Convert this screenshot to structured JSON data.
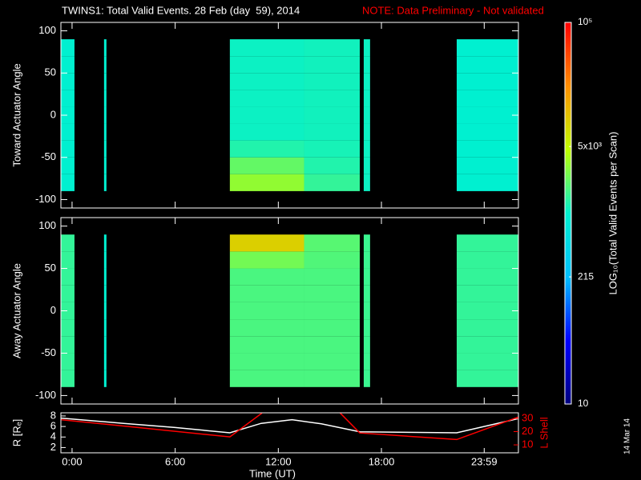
{
  "chart_data": [
    {
      "type": "heatmap",
      "title": "TWINS1: Total Valid Events. 28 Feb (day  59), 2014",
      "note": "NOTE: Data Preliminary - Not validated",
      "ylabel": "Toward Actuator Angle",
      "xlim": [
        -0.65,
        25.97
      ],
      "ylim": [
        -110,
        110
      ],
      "yticks": [
        -100,
        -50,
        0,
        50,
        100
      ],
      "angle_bins": [
        -90,
        -70,
        -50,
        -30,
        -10,
        10,
        30,
        50,
        70,
        90
      ],
      "segments": [
        {
          "start": -0.65,
          "end": 0.14,
          "values": [
            1000,
            1000,
            1000,
            1000,
            1000,
            1000,
            1000,
            1000,
            1000
          ]
        },
        {
          "start": 1.86,
          "end": 2.0,
          "values": [
            1000,
            1000,
            1000,
            1000,
            1000,
            1000,
            1000,
            1000,
            1000
          ]
        },
        {
          "start": 9.18,
          "end": 13.5,
          "values": [
            3200,
            2200,
            1300,
            1100,
            1100,
            1100,
            1100,
            1100,
            1100
          ]
        },
        {
          "start": 13.5,
          "end": 16.74,
          "values": [
            1500,
            1300,
            1200,
            1150,
            1150,
            1150,
            1150,
            1150,
            1150
          ]
        },
        {
          "start": 16.97,
          "end": 17.34,
          "values": [
            1100,
            1100,
            1100,
            1100,
            1100,
            1100,
            1100,
            1100,
            1100
          ]
        },
        {
          "start": 22.38,
          "end": 25.97,
          "values": [
            1000,
            1000,
            1000,
            1000,
            1000,
            1000,
            1000,
            1000,
            1000
          ]
        }
      ],
      "colorbar": {
        "label": "LOG₁₀(Total Valid Events per Scan)",
        "log": true,
        "lim": [
          10,
          100000
        ],
        "ticks": [
          10,
          215,
          {
            "value": 5000,
            "label": "5x10³"
          },
          {
            "value": 100000,
            "label": "10⁵"
          }
        ],
        "colors": [
          "#00007f",
          "#0000ff",
          "#00c0ff",
          "#00f0d0",
          "#c0ff00",
          "#ff9000",
          "#ff0000"
        ]
      }
    },
    {
      "type": "heatmap",
      "ylabel": "Away Actuator Angle",
      "xlim": [
        -0.65,
        25.97
      ],
      "ylim": [
        -110,
        110
      ],
      "yticks": [
        -100,
        -50,
        0,
        50,
        100
      ],
      "angle_bins": [
        -90,
        -70,
        -50,
        -30,
        -10,
        10,
        30,
        50,
        70,
        90
      ],
      "segments": [
        {
          "start": -0.65,
          "end": 0.14,
          "values": [
            1500,
            1500,
            1500,
            1500,
            1500,
            1500,
            1500,
            1500,
            1500
          ]
        },
        {
          "start": 1.86,
          "end": 2.0,
          "values": [
            1000,
            1000,
            1000,
            1000,
            1000,
            1000,
            1000,
            1000,
            1000
          ]
        },
        {
          "start": 9.18,
          "end": 13.5,
          "values": [
            1800,
            1800,
            1800,
            1800,
            1800,
            1800,
            1800,
            2500,
            9000
          ]
        },
        {
          "start": 13.5,
          "end": 16.74,
          "values": [
            1800,
            1800,
            1800,
            1800,
            1800,
            1800,
            1800,
            1900,
            2000
          ]
        },
        {
          "start": 16.97,
          "end": 17.34,
          "values": [
            1600,
            1600,
            1600,
            1600,
            1600,
            1600,
            1600,
            1600,
            1600
          ]
        },
        {
          "start": 22.38,
          "end": 25.97,
          "values": [
            1500,
            1500,
            1500,
            1500,
            1500,
            1500,
            1500,
            1500,
            1500
          ]
        }
      ]
    },
    {
      "type": "line",
      "xlabel": "Time (UT)",
      "xlim": [
        -0.65,
        25.97
      ],
      "xticks": [
        {
          "value": 0,
          "label": "0:00"
        },
        {
          "value": 6,
          "label": "6:00"
        },
        {
          "value": 12,
          "label": "12:00"
        },
        {
          "value": 18,
          "label": "18:00"
        },
        {
          "value": 23.98,
          "label": "23:59"
        }
      ],
      "ylabel": "R [Rₑ]",
      "ylim": [
        1,
        8.6
      ],
      "yticks": [
        2,
        4,
        6,
        8
      ],
      "y2label": "L Shell",
      "y2lim": [
        4,
        34.2
      ],
      "y2ticks": [
        10,
        20,
        30
      ],
      "y2color": "#ff0000",
      "series": [
        {
          "color": "#ffffff",
          "x": [
            -0.65,
            3,
            6,
            9.18,
            11,
            12.8,
            14.5,
            16.74,
            22.38,
            24.5,
            25.97
          ],
          "values": [
            7.6,
            6.6,
            5.8,
            4.8,
            6.6,
            7.3,
            6.5,
            5.0,
            4.8,
            6.4,
            7.5
          ]
        },
        {
          "color": "#ff0000",
          "axis": "y2",
          "x": [
            -0.65,
            9.18,
            11.05,
            13.3,
            15.6,
            16.74,
            22.38,
            25.97
          ],
          "values": [
            29,
            16,
            34,
            null,
            34,
            19,
            14,
            31
          ]
        }
      ],
      "annotation": "14 Mar 14"
    }
  ]
}
